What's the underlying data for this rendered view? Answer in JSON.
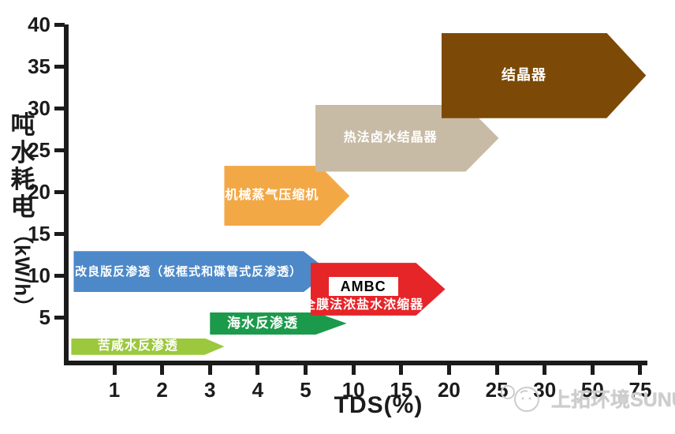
{
  "watermark": {
    "text": "上拓环境SUNUP"
  },
  "chart_data": {
    "type": "arrow-band",
    "title": "",
    "xlabel": "TDS(%)",
    "ylabel": "吨水耗电（kW/h）",
    "ylabel_cn": "吨水耗电",
    "ylabel_unit": "（kW/h）",
    "x_scale": "piecewise-linear between listed ticks, equal pixel spacing per tick",
    "x_ticks": [
      1,
      2,
      3,
      4,
      5,
      10,
      15,
      20,
      25,
      30,
      50,
      75
    ],
    "y_ticks": [
      5,
      10,
      15,
      20,
      25,
      30,
      35,
      40
    ],
    "ylim": [
      0,
      40
    ],
    "grid": false,
    "bands": [
      {
        "label": "苦咸水反渗透",
        "tds_min": 0.1,
        "tds_max": 3.3,
        "kwh_min": 0.5,
        "kwh_max": 2.5,
        "color": "#9cc83e",
        "text_color": "#ffffff"
      },
      {
        "label": "海水反渗透",
        "tds_min": 3.0,
        "tds_max": 9.3,
        "kwh_min": 2.9,
        "kwh_max": 5.6,
        "color": "#1b9a4c",
        "text_color": "#ffffff"
      },
      {
        "label": "改良版反渗透（板框式和碟管式反渗透）",
        "tds_min": 0.15,
        "tds_max": 7.5,
        "kwh_min": 8.0,
        "kwh_max": 12.9,
        "color": "#4d89c8",
        "text_color": "#ffffff"
      },
      {
        "label": "全膜法浓盐水浓缩器",
        "badge": "AMBC",
        "badge_bg": "#ffffff",
        "badge_text_color": "#000000",
        "tds_min": 5.5,
        "tds_max": 19.6,
        "kwh_min": 5.2,
        "kwh_max": 11.5,
        "color": "#e62529",
        "text_color": "#ffffff"
      },
      {
        "label": "机械蒸气压缩机",
        "tds_min": 3.3,
        "tds_max": 9.6,
        "kwh_min": 15.9,
        "kwh_max": 23.1,
        "color": "#f3a846",
        "text_color": "#ffffff"
      },
      {
        "label": "热法卤水结晶器",
        "tds_min": 6.0,
        "tds_max": 25.2,
        "kwh_min": 22.4,
        "kwh_max": 30.4,
        "color": "#c8bba5",
        "text_color": "#ffffff"
      },
      {
        "label": "结晶器",
        "tds_min": 19.2,
        "tds_max": 78.0,
        "kwh_min": 28.8,
        "kwh_max": 39.0,
        "color": "#7c4a06",
        "text_color": "#ffffff"
      }
    ]
  }
}
